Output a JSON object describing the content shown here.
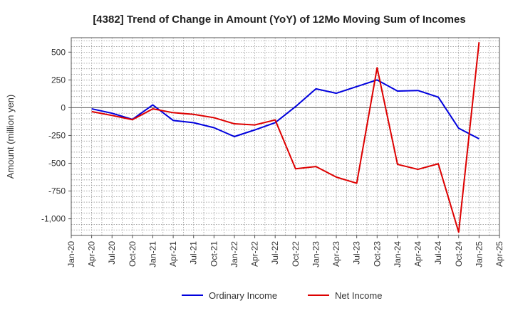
{
  "chart_data": {
    "type": "line",
    "title": "[4382]  Trend of Change in Amount (YoY) of 12Mo Moving Sum of Incomes",
    "ylabel": "Amount (million yen)",
    "xlabel": "",
    "ylim": [
      -1150,
      630
    ],
    "yticks": [
      500,
      250,
      0,
      -250,
      -500,
      -750,
      -1000
    ],
    "ytick_labels": [
      "500",
      "250",
      "0",
      "-250",
      "-500",
      "-750",
      "-1,000"
    ],
    "categories": [
      "Jan-20",
      "Apr-20",
      "Jul-20",
      "Oct-20",
      "Jan-21",
      "Apr-21",
      "Jul-21",
      "Oct-21",
      "Jan-22",
      "Apr-22",
      "Jul-22",
      "Oct-22",
      "Jan-23",
      "Apr-23",
      "Jul-23",
      "Oct-23",
      "Jan-24",
      "Apr-24",
      "Jul-24",
      "Oct-24",
      "Jan-25",
      "Apr-25"
    ],
    "x_labels_every": 1,
    "grid": true,
    "legend_position": "bottom",
    "series": [
      {
        "name": "Ordinary Income",
        "color": "#0000dd",
        "values": [
          null,
          -10,
          -50,
          -105,
          25,
          -115,
          -135,
          -180,
          -260,
          -200,
          -135,
          10,
          170,
          130,
          190,
          250,
          150,
          155,
          95,
          -185,
          -280,
          null
        ]
      },
      {
        "name": "Net Income",
        "color": "#dd0000",
        "values": [
          null,
          -35,
          -70,
          -108,
          -10,
          -45,
          -60,
          -90,
          -145,
          -155,
          -110,
          -550,
          -530,
          -625,
          -680,
          360,
          -510,
          -555,
          -505,
          -1120,
          590,
          null
        ]
      }
    ]
  }
}
